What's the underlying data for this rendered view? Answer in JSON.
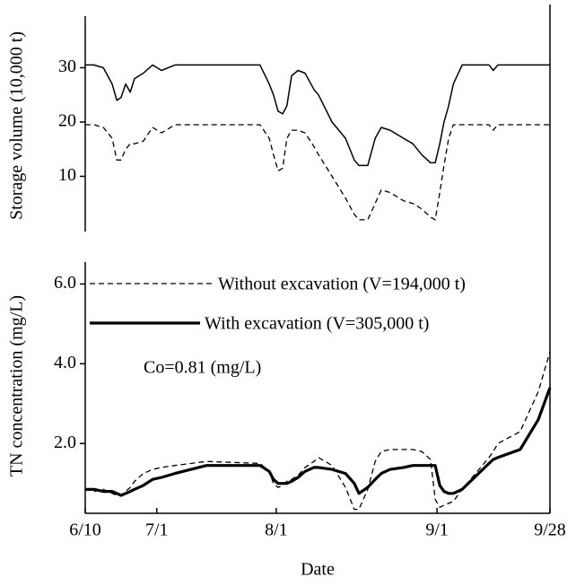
{
  "chart_data": [
    {
      "type": "line",
      "y_label": "Storage volume (10,000 t)",
      "x": [
        0,
        1.9,
        3.9,
        5.8,
        6.8,
        7.7,
        8.7,
        9.7,
        10.6,
        12.5,
        14.5,
        16.4,
        19.3,
        26.1,
        37.6,
        39.6,
        40.5,
        41.5,
        42.5,
        43.4,
        44.4,
        45.8,
        47.3,
        49.2,
        50.2,
        53.1,
        56.0,
        57.9,
        58.9,
        60.8,
        62.4,
        63.7,
        65.6,
        68.5,
        70.5,
        72.4,
        74.3,
        75.3,
        76.3,
        77.2,
        78.2,
        79.2,
        81.1,
        86.9,
        87.8,
        88.8,
        93.6,
        97.5,
        100
      ],
      "xlim": [
        0,
        100
      ],
      "ylim": [
        0,
        39
      ],
      "yticks": [
        10,
        20,
        30
      ],
      "series": [
        {
          "color": "#000000",
          "linestyle": "solid",
          "linewidth": 1.5,
          "values": [
            30.5,
            30.5,
            30,
            27,
            24,
            24.5,
            27,
            25.5,
            28,
            29,
            30.5,
            29.5,
            30.5,
            30.5,
            30.5,
            27,
            25,
            22,
            21.5,
            23,
            28.5,
            29.5,
            29,
            26,
            25,
            20,
            17,
            13,
            12,
            12,
            17,
            19,
            18.5,
            17,
            16,
            14,
            12.5,
            12.5,
            16,
            20,
            23,
            27,
            30.5,
            30.5,
            29.5,
            30.5,
            30.5,
            30.5,
            30.5
          ]
        },
        {
          "color": "#000000",
          "linestyle": "dashed",
          "linewidth": 1.3,
          "values": [
            19.5,
            19.5,
            19,
            17,
            13,
            13,
            15,
            16,
            16,
            16.5,
            19,
            18,
            19.5,
            19.5,
            19.5,
            17,
            14,
            11,
            11.5,
            17,
            18.5,
            18.5,
            18,
            15.5,
            14,
            10,
            6,
            3,
            2,
            2,
            5,
            7.5,
            7,
            5.5,
            5,
            4,
            2.5,
            2,
            7,
            12,
            17,
            19.5,
            19.5,
            19.5,
            18.5,
            19.5,
            19.5,
            19.5,
            19.5
          ]
        }
      ]
    },
    {
      "type": "line",
      "y_label": "TN concentration (mg/L)",
      "x_label": "Date",
      "annotation": "Co=0.81 (mg/L)",
      "x": [
        0,
        1.9,
        3.9,
        5.8,
        6.8,
        7.7,
        8.7,
        9.7,
        10.6,
        12.5,
        14.5,
        16.4,
        19.3,
        26.1,
        37.6,
        39.6,
        40.5,
        41.5,
        42.5,
        43.4,
        44.4,
        45.8,
        47.3,
        49.2,
        50.2,
        53.1,
        56.0,
        57.9,
        58.9,
        60.8,
        62.4,
        63.7,
        65.6,
        68.5,
        70.5,
        72.4,
        74.3,
        75.3,
        76.3,
        77.2,
        78.2,
        79.2,
        81.1,
        86.9,
        87.8,
        88.8,
        93.6,
        97.5,
        100
      ],
      "xlim": [
        0,
        100
      ],
      "xticks": [
        {
          "value": 0,
          "label": "6/10"
        },
        {
          "value": 15.4,
          "label": "7/1"
        },
        {
          "value": 41.1,
          "label": "8/1"
        },
        {
          "value": 75.7,
          "label": "9/1"
        },
        {
          "value": 100,
          "label": "9/28"
        }
      ],
      "ylim": [
        0.25,
        6.55
      ],
      "yticks": [
        {
          "value": 2,
          "label": "2.0"
        },
        {
          "value": 4,
          "label": "4.0"
        },
        {
          "value": 6,
          "label": "6.0"
        }
      ],
      "series": [
        {
          "name": "Without excavation (V=194,000 t)",
          "color": "#000000",
          "linestyle": "dashed",
          "linewidth": 1.3,
          "values": [
            0.85,
            0.8,
            0.85,
            0.75,
            0.7,
            0.7,
            0.8,
            0.9,
            1.05,
            1.25,
            1.35,
            1.4,
            1.45,
            1.55,
            1.5,
            1.3,
            1.0,
            0.9,
            0.95,
            1.05,
            1.1,
            1.2,
            1.4,
            1.55,
            1.65,
            1.45,
            0.9,
            0.35,
            0.35,
            0.85,
            1.55,
            1.8,
            1.85,
            1.85,
            1.85,
            1.8,
            1.6,
            0.6,
            0.4,
            0.45,
            0.5,
            0.55,
            0.85,
            1.65,
            1.8,
            2.0,
            2.3,
            3.3,
            4.3
          ]
        },
        {
          "name": "With excavation (V=305,000 t)",
          "color": "#000000",
          "linestyle": "solid",
          "linewidth": 3.2,
          "values": [
            0.85,
            0.85,
            0.8,
            0.8,
            0.75,
            0.7,
            0.75,
            0.8,
            0.85,
            0.95,
            1.1,
            1.15,
            1.25,
            1.45,
            1.45,
            1.3,
            1.1,
            1.0,
            1.0,
            1.0,
            1.05,
            1.15,
            1.3,
            1.4,
            1.4,
            1.35,
            1.25,
            1.0,
            0.75,
            0.9,
            1.1,
            1.25,
            1.35,
            1.4,
            1.45,
            1.45,
            1.45,
            1.45,
            0.95,
            0.8,
            0.75,
            0.75,
            0.85,
            1.5,
            1.6,
            1.65,
            1.85,
            2.6,
            3.4
          ]
        }
      ]
    }
  ]
}
